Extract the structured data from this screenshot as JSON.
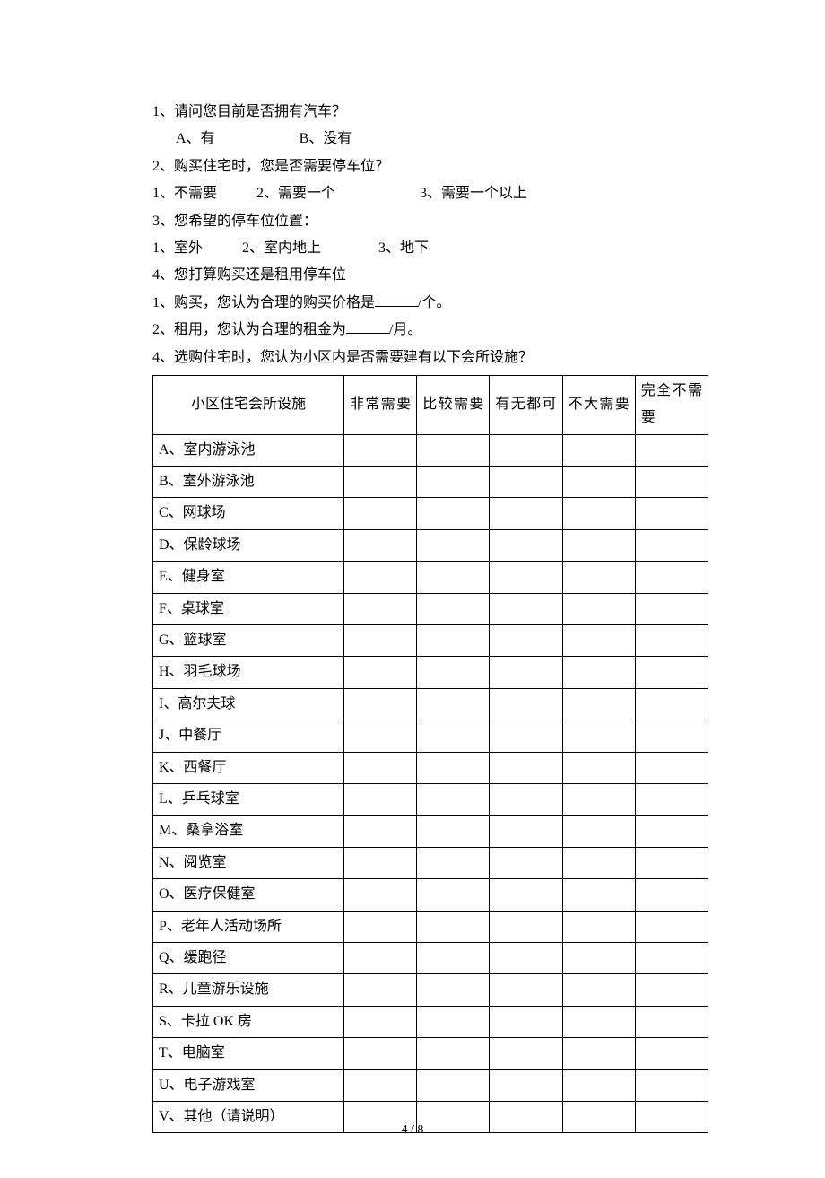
{
  "q1": {
    "text": "1、请问您目前是否拥有汽车？",
    "a": "A、有",
    "b": "B、没有"
  },
  "q2": {
    "text": "2、购买住宅时，您是否需要停车位？",
    "o1": "1、不需要",
    "o2": "2、需要一个",
    "o3": "3、需要一个以上"
  },
  "q3": {
    "text": "3、您希望的停车位位置：",
    "o1": "1、室外",
    "o2": "2、室内地上",
    "o3": "3、地下"
  },
  "q4sub": {
    "text": " 4、您打算购买还是租用停车位",
    "l1a": "1、购买，您认为合理的购买价格是",
    "l1b": "/个。",
    "l2a": "2、租用，您认为合理的租金为",
    "l2b": "/月。"
  },
  "q4": {
    "text": "4、选购住宅时，您认为小区内是否需要建有以下会所设施？"
  },
  "table": {
    "header": {
      "facility": "小区住宅会所设施",
      "c1": "非常需要",
      "c2": "比较需要",
      "c3": "有无都可",
      "c4": "不大需要",
      "c5": "完全不需要"
    },
    "rows": [
      "A、室内游泳池",
      "B、室外游泳池",
      "C、网球场",
      "D、保龄球场",
      "E、健身室",
      "F、桌球室",
      "G、篮球室",
      "H、羽毛球场",
      "I、高尔夫球",
      "J、中餐厅",
      "K、西餐厅",
      "L、乒乓球室",
      "M、桑拿浴室",
      "N、阅览室",
      "O、医疗保健室",
      "P、老年人活动场所",
      "Q、缓跑径",
      "R、儿童游乐设施",
      "S、卡拉 OK 房",
      "T、电脑室",
      "U、电子游戏室",
      "V、其他（请说明）"
    ]
  },
  "footer": "4 / 8"
}
